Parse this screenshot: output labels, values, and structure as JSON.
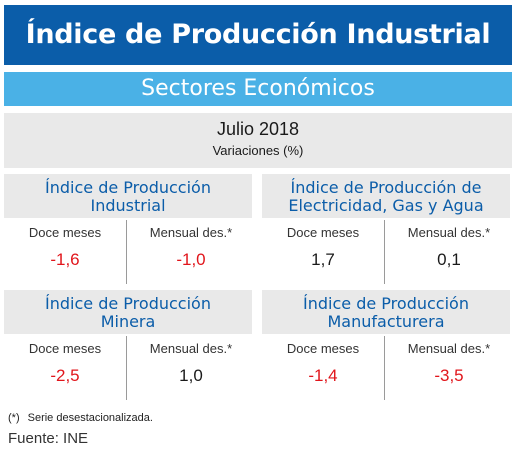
{
  "title": "Índice de Producción Industrial",
  "subtitle": "Sectores Económicos",
  "period": {
    "title": "Julio 2018",
    "subtitle": "Variaciones (%)"
  },
  "cards": [
    {
      "line1": "Índice de Producción",
      "line2": "Industrial",
      "label_a": "Doce meses",
      "label_b": "Mensual des.*",
      "value_a": "-1,6",
      "value_b": "-1,0"
    },
    {
      "line1": "Índice de Producción de",
      "line2": "Electricidad, Gas y Agua",
      "label_a": "Doce meses",
      "label_b": "Mensual des.*",
      "value_a": "1,7",
      "value_b": "0,1"
    },
    {
      "line1": "Índice de Producción",
      "line2": "Minera",
      "label_a": "Doce meses",
      "label_b": "Mensual des.*",
      "value_a": "-2,5",
      "value_b": "1,0"
    },
    {
      "line1": "Índice de Producción",
      "line2": "Manufacturera",
      "label_a": "Doce meses",
      "label_b": "Mensual des.*",
      "value_a": "-1,4",
      "value_b": "-3,5"
    }
  ],
  "footnote": {
    "marker": "(*)",
    "text": "Serie desestacionalizada."
  },
  "source": "Fuente: INE",
  "colors": {
    "title_bg": "#0b5da9",
    "subtitle_bg": "#4ab1e6",
    "negative": "#e1151b",
    "panel": "#e9e9e9"
  }
}
